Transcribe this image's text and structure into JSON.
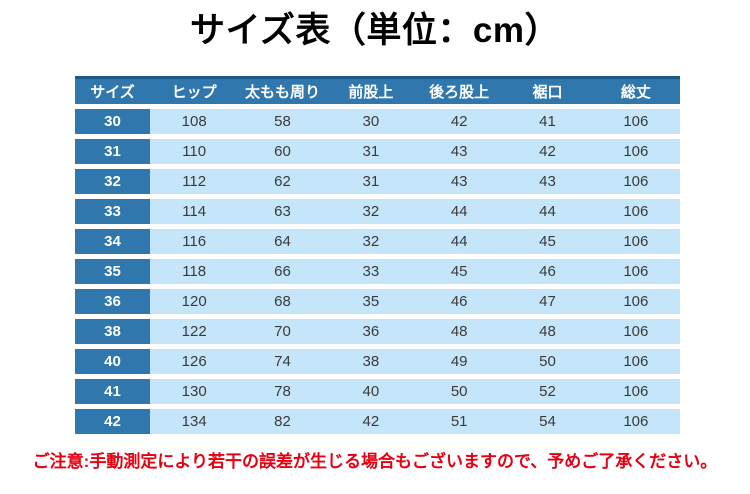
{
  "title": "サイズ表（単位：cm）",
  "note": "ご注意:手動測定により若干の誤差が生じる場合もございますので、予めご了承ください。",
  "colors": {
    "header_blue": "#2f77ad",
    "header_top_border": "#1d5a85",
    "cell_light": "#c5e6fa",
    "cell_text": "#3a3a3a",
    "note_red": "#e60012",
    "header_text": "#ffffff",
    "title_black": "#000000"
  },
  "table": {
    "headers": [
      "サイズ",
      "ヒップ",
      "太もも周り",
      "前股上",
      "後ろ股上",
      "裾口",
      "総丈"
    ],
    "rows": [
      [
        "30",
        "108",
        "58",
        "30",
        "42",
        "41",
        "106"
      ],
      [
        "31",
        "110",
        "60",
        "31",
        "43",
        "42",
        "106"
      ],
      [
        "32",
        "112",
        "62",
        "31",
        "43",
        "43",
        "106"
      ],
      [
        "33",
        "114",
        "63",
        "32",
        "44",
        "44",
        "106"
      ],
      [
        "34",
        "116",
        "64",
        "32",
        "44",
        "45",
        "106"
      ],
      [
        "35",
        "118",
        "66",
        "33",
        "45",
        "46",
        "106"
      ],
      [
        "36",
        "120",
        "68",
        "35",
        "46",
        "47",
        "106"
      ],
      [
        "38",
        "122",
        "70",
        "36",
        "48",
        "48",
        "106"
      ],
      [
        "40",
        "126",
        "74",
        "38",
        "49",
        "50",
        "106"
      ],
      [
        "41",
        "130",
        "78",
        "40",
        "50",
        "52",
        "106"
      ],
      [
        "42",
        "134",
        "82",
        "42",
        "51",
        "54",
        "106"
      ]
    ]
  },
  "chart_data": {
    "type": "table",
    "title": "サイズ表（単位：cm）",
    "unit": "cm",
    "columns": [
      "サイズ",
      "ヒップ",
      "太もも周り",
      "前股上",
      "後ろ股上",
      "裾口",
      "総丈"
    ],
    "rows": [
      [
        30,
        108,
        58,
        30,
        42,
        41,
        106
      ],
      [
        31,
        110,
        60,
        31,
        43,
        42,
        106
      ],
      [
        32,
        112,
        62,
        31,
        43,
        43,
        106
      ],
      [
        33,
        114,
        63,
        32,
        44,
        44,
        106
      ],
      [
        34,
        116,
        64,
        32,
        44,
        45,
        106
      ],
      [
        35,
        118,
        66,
        33,
        45,
        46,
        106
      ],
      [
        36,
        120,
        68,
        35,
        46,
        47,
        106
      ],
      [
        38,
        122,
        70,
        36,
        48,
        48,
        106
      ],
      [
        40,
        126,
        74,
        38,
        49,
        50,
        106
      ],
      [
        41,
        130,
        78,
        40,
        50,
        52,
        106
      ],
      [
        42,
        134,
        82,
        42,
        51,
        54,
        106
      ]
    ],
    "footnote": "ご注意:手動測定により若干の誤差が生じる場合もございますので、予めご了承ください。"
  }
}
